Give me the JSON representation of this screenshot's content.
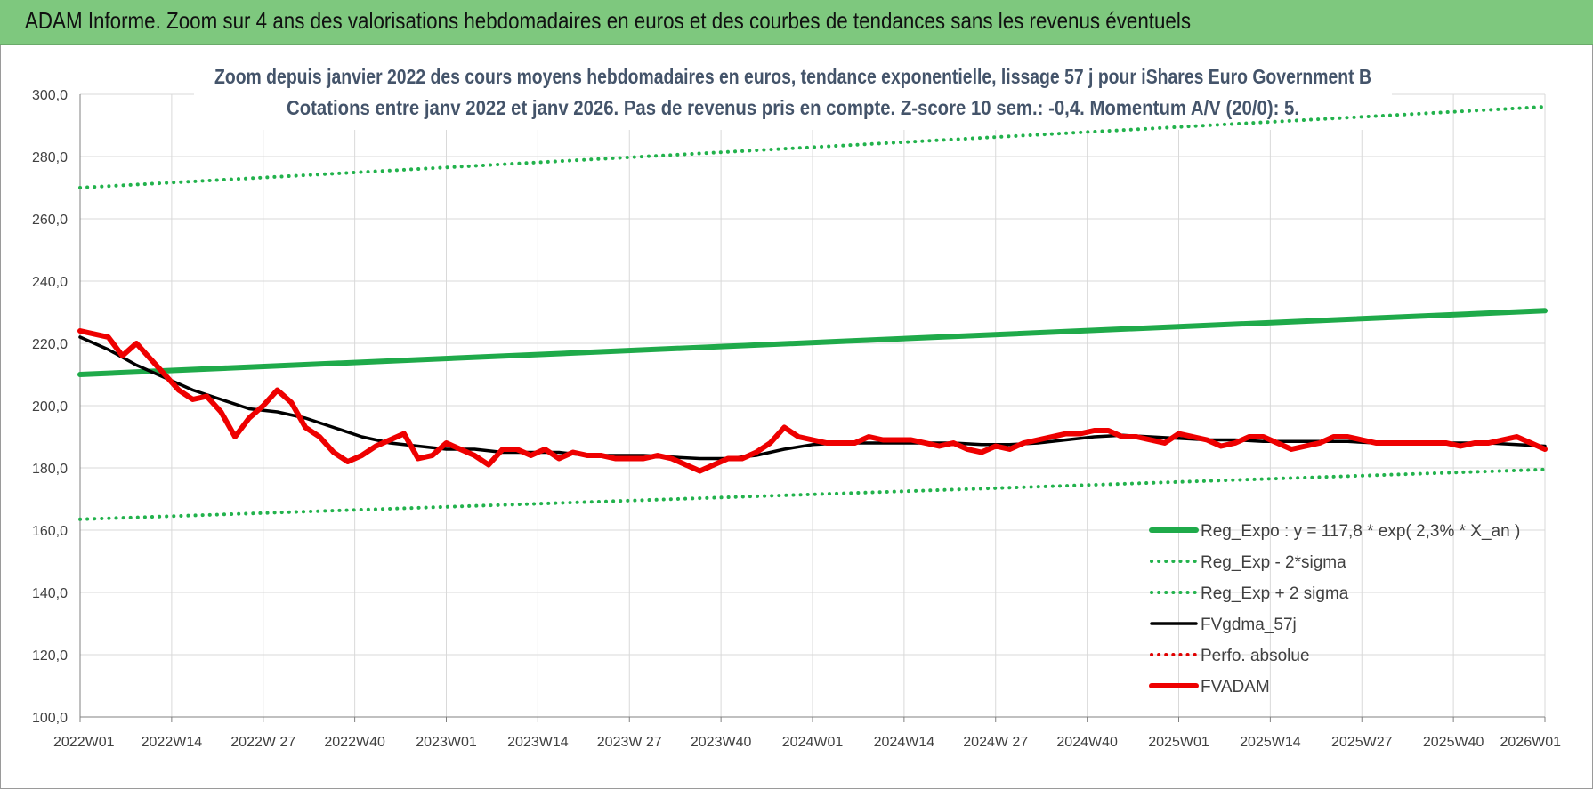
{
  "banner": {
    "title": "ADAM Informe. Zoom sur 4 ans des valorisations hebdomadaires en euros et des courbes de tendances sans les revenus éventuels"
  },
  "colors": {
    "banner_bg": "#7ec87e",
    "trend": "#1faa4a",
    "band": "#22b24c",
    "smooth": "#000000",
    "perf": "#e00000",
    "fvadam": "#ee0000",
    "grid": "#d9d9d9"
  },
  "chart_data": {
    "type": "line",
    "title": "Zoom depuis janvier 2022 des cours moyens hebdomadaires en euros, tendance exponentielle, lissage 57 j pour iShares Euro Government B",
    "subtitle": "Cotations entre janv 2022 et janv 2026. Pas de revenus pris en compte. Z-score 10 sem.: -0,4. Momentum A/V (20/0): 5.",
    "xlabel": "",
    "ylabel": "",
    "x_ticks": [
      "2022W01",
      "2022W14",
      "2022W 27",
      "2022W40",
      "2023W01",
      "2023W14",
      "2023W 27",
      "2023W40",
      "2024W01",
      "2024W14",
      "2024W 27",
      "2024W40",
      "2025W01",
      "2025W14",
      "2025W27",
      "2025W40",
      "2026W01"
    ],
    "y_ticks": [
      "100,0",
      "120,0",
      "140,0",
      "160,0",
      "180,0",
      "200,0",
      "220,0",
      "240,0",
      "260,0",
      "280,0",
      "300,0"
    ],
    "ylim": [
      100,
      300
    ],
    "x_range_weeks": [
      0,
      208
    ],
    "grid": true,
    "legend_position": "bottom-right",
    "series": [
      {
        "name": "Reg_Expo : y = 117,8 * exp( 2,3% *  X_an )",
        "style": "solid-thick",
        "color": "#1faa4a",
        "x": [
          0,
          208
        ],
        "y": [
          210.0,
          230.5
        ]
      },
      {
        "name": "Reg_Exp - 2*sigma",
        "style": "dotted",
        "color": "#22b24c",
        "x": [
          0,
          208
        ],
        "y": [
          163.5,
          179.5
        ]
      },
      {
        "name": "Reg_Exp + 2 sigma",
        "style": "dotted",
        "color": "#22b24c",
        "x": [
          0,
          208
        ],
        "y": [
          270.0,
          296.0
        ]
      },
      {
        "name": "FVgdma_57j",
        "style": "solid",
        "color": "#000000",
        "x": [
          0,
          4,
          8,
          12,
          16,
          20,
          24,
          28,
          32,
          36,
          40,
          44,
          48,
          52,
          56,
          60,
          64,
          68,
          72,
          76,
          80,
          84,
          88,
          92,
          96,
          100,
          104,
          108,
          112,
          116,
          120,
          124,
          128,
          132,
          136,
          140,
          144,
          148,
          152,
          156,
          160,
          164,
          168,
          172,
          176,
          180,
          184,
          188,
          192,
          196,
          200,
          204,
          208
        ],
        "y": [
          222,
          218,
          213,
          209,
          205,
          202,
          199,
          198,
          196,
          193,
          190,
          188,
          187,
          186,
          186,
          185,
          185,
          185,
          184,
          184,
          184,
          183.5,
          183,
          183,
          184,
          186,
          187.5,
          188,
          188,
          188,
          188,
          188,
          187.5,
          187.5,
          188,
          189,
          190,
          190.5,
          190,
          189.5,
          189,
          189,
          188.5,
          188.5,
          188.5,
          188.5,
          188,
          188,
          188,
          188,
          188,
          187.5,
          187
        ]
      },
      {
        "name": "Perfo. absolue",
        "style": "dotted",
        "color": "#e00000",
        "x": [],
        "y": []
      },
      {
        "name": "FVADAM",
        "style": "solid-thick",
        "color": "#ee0000",
        "x": [
          0,
          2,
          4,
          6,
          8,
          10,
          12,
          14,
          16,
          18,
          20,
          22,
          24,
          26,
          28,
          30,
          32,
          34,
          36,
          38,
          40,
          42,
          44,
          46,
          48,
          50,
          52,
          54,
          56,
          58,
          60,
          62,
          64,
          66,
          68,
          70,
          72,
          74,
          76,
          78,
          80,
          82,
          84,
          86,
          88,
          90,
          92,
          94,
          96,
          98,
          100,
          102,
          104,
          106,
          108,
          110,
          112,
          114,
          116,
          118,
          120,
          122,
          124,
          126,
          128,
          130,
          132,
          134,
          136,
          138,
          140,
          142,
          144,
          146,
          148,
          150,
          152,
          154,
          156,
          158,
          160,
          162,
          164,
          166,
          168,
          170,
          172,
          174,
          176,
          178,
          180,
          182,
          184,
          186,
          188,
          190,
          192,
          194,
          196,
          198,
          200,
          202,
          204,
          206,
          208
        ],
        "y": [
          224,
          223,
          222,
          216,
          220,
          215,
          210,
          205,
          202,
          203,
          198,
          190,
          196,
          200,
          205,
          201,
          193,
          190,
          185,
          182,
          184,
          187,
          189,
          191,
          183,
          184,
          188,
          186,
          184,
          181,
          186,
          186,
          184,
          186,
          183,
          185,
          184,
          184,
          183,
          183,
          183,
          184,
          183,
          181,
          179,
          181,
          183,
          183,
          185,
          188,
          193,
          190,
          189,
          188,
          188,
          188,
          190,
          189,
          189,
          189,
          188,
          187,
          188,
          186,
          185,
          187,
          186,
          188,
          189,
          190,
          191,
          191,
          192,
          192,
          190,
          190,
          189,
          188,
          191,
          190,
          189,
          187,
          188,
          190,
          190,
          188,
          186,
          187,
          188,
          190,
          190,
          189,
          188,
          188,
          188,
          188,
          188,
          188,
          187,
          188,
          188,
          189,
          190,
          188,
          186
        ]
      }
    ]
  }
}
